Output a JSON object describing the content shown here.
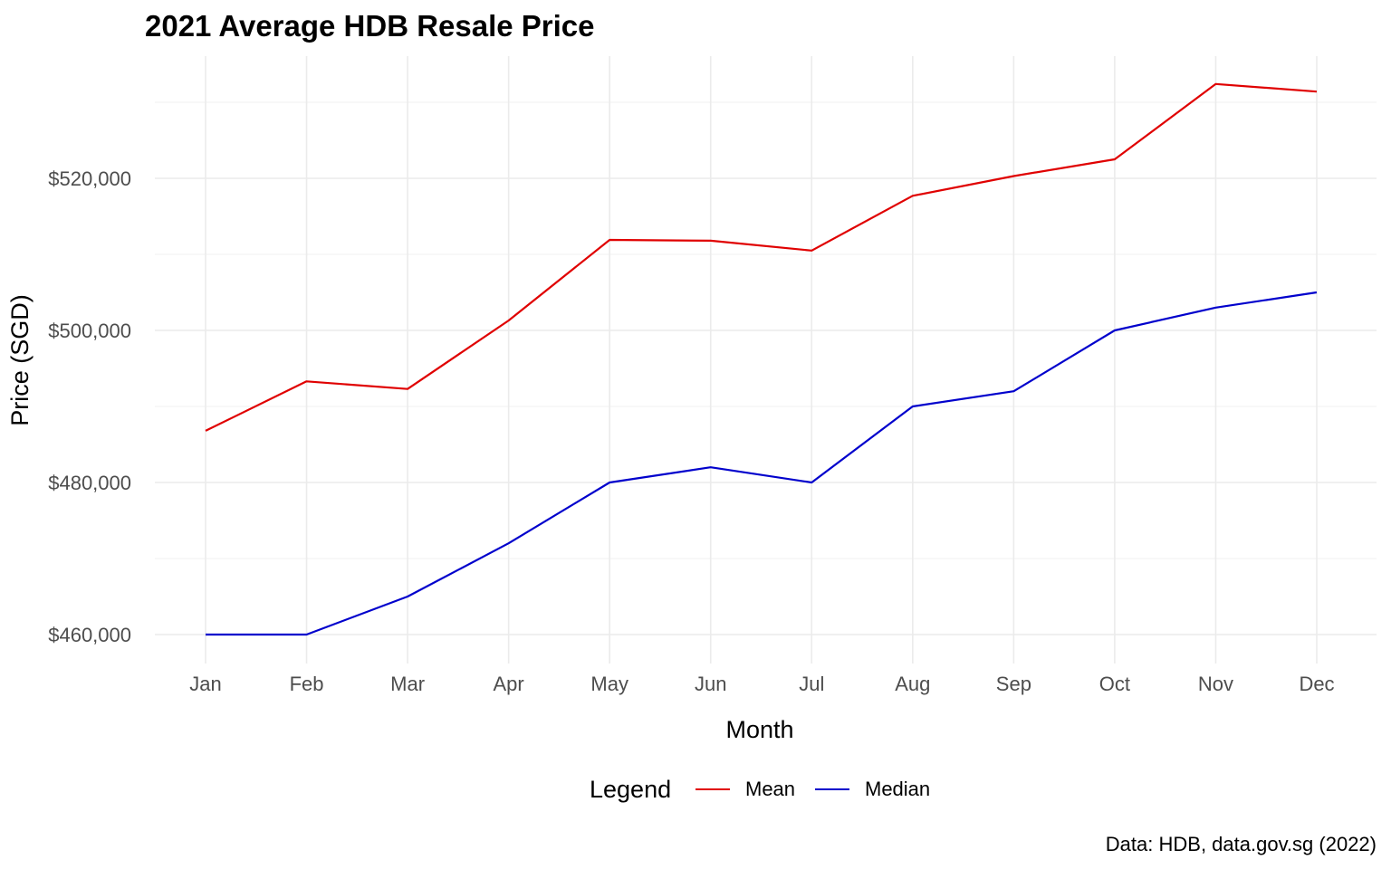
{
  "chart_data": {
    "type": "line",
    "title": "2021 Average HDB Resale Price",
    "xlabel": "Month",
    "ylabel": "Price (SGD)",
    "categories": [
      "Jan",
      "Feb",
      "Mar",
      "Apr",
      "May",
      "Jun",
      "Jul",
      "Aug",
      "Sep",
      "Oct",
      "Nov",
      "Dec"
    ],
    "yticks": [
      460000,
      480000,
      500000,
      520000
    ],
    "ytick_labels": [
      "$460,000",
      "$480,000",
      "$500,000",
      "$520,000"
    ],
    "ylim": [
      457000,
      535000
    ],
    "grid": true,
    "legend": {
      "title": "Legend",
      "placement": "bottom"
    },
    "series": [
      {
        "name": "Mean",
        "color": "#e00000",
        "values": [
          486800,
          493300,
          492300,
          501300,
          511900,
          511800,
          510500,
          517700,
          520300,
          522500,
          532400,
          531400
        ]
      },
      {
        "name": "Median",
        "color": "#0000cc",
        "values": [
          460000,
          460000,
          465000,
          472000,
          480000,
          482000,
          480000,
          490000,
          492000,
          500000,
          503000,
          505000
        ]
      }
    ],
    "caption": "Data: HDB, data.gov.sg (2022)"
  }
}
